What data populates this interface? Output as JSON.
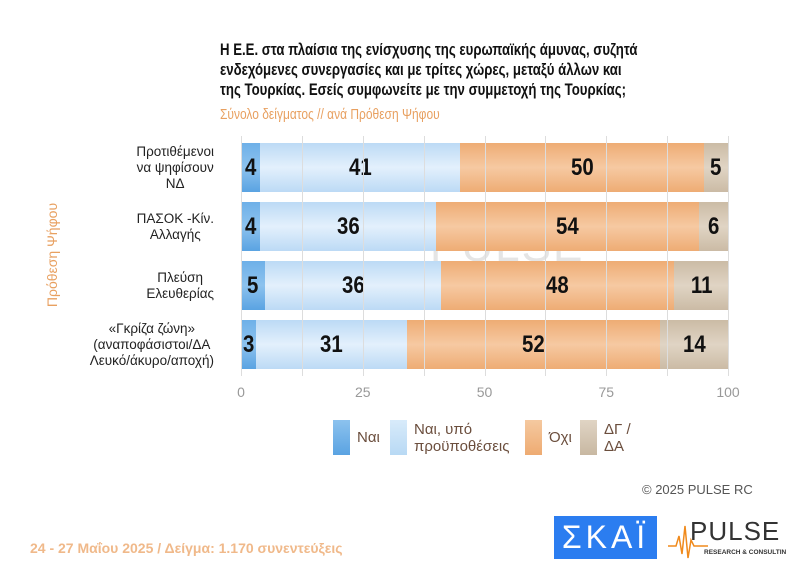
{
  "chart_data": {
    "type": "bar",
    "orientation": "horizontal-stacked",
    "title": "Η Ε.Ε. στα πλαίσια της ενίσχυσης της ευρωπαϊκής άμυνας, συζητά ενδεχόμενες συνεργασίες και με τρίτες χώρες, μεταξύ άλλων και της Τουρκίας. Εσείς συμφωνείτε με την συμμετοχή της Τουρκίας;",
    "title_lines": [
      "Η Ε.Ε. στα πλαίσια της ενίσχυσης της ευρωπαϊκής άμυνας, συζητά",
      "ενδεχόμενες συνεργασίες και με τρίτες χώρες, μεταξύ άλλων και",
      "της Τουρκίας. Εσείς συμφωνείτε με την συμμετοχή της Τουρκίας;"
    ],
    "subtitle": "Σύνολο δείγματος // ανά Πρόθεση Ψήφου",
    "ylabel": "Πρόθεση Ψήφου",
    "xlim": [
      0,
      100
    ],
    "xticks": [
      "0",
      "25",
      "50",
      "75",
      "100"
    ],
    "categories": [
      [
        "Προτιθέμενοι",
        "να ψηφίσουν",
        "ΝΔ"
      ],
      [
        "ΠΑΣΟΚ -Κίν.",
        "Αλλαγής"
      ],
      [
        "Πλεύση",
        "Ελευθερίας"
      ],
      [
        "«Γκρίζα ζώνη»",
        "(αναποφάσιστοι/ΔΑ",
        "Λευκό/άκυρο/αποχή)"
      ]
    ],
    "series": [
      {
        "name": "Ναι",
        "legend_lines": [
          "Ναι"
        ],
        "color": "#6aaee6",
        "values": [
          4,
          4,
          5,
          3
        ]
      },
      {
        "name": "Ναι, υπό προϋποθέσεις",
        "legend_lines": [
          "Ναι, υπό",
          "προϋποθέσεις"
        ],
        "color": "#c5e0f7",
        "values": [
          41,
          36,
          36,
          31
        ]
      },
      {
        "name": "Όχι",
        "legend_lines": [
          "Όχι"
        ],
        "color": "#f1b888",
        "values": [
          50,
          54,
          48,
          52
        ]
      },
      {
        "name": "ΔΓ / ΔΑ",
        "legend_lines": [
          "ΔΓ /",
          "ΔΑ"
        ],
        "color": "#d5c6b3",
        "values": [
          5,
          6,
          11,
          14
        ]
      }
    ],
    "legend_position": "bottom"
  },
  "copyright": "©  2025  PULSE RC",
  "footer": "24 - 27 Μαΐου 2025  /  Δείγμα:  1.170 συνεντεύξεις",
  "logos": {
    "skai": "ΣΚΑΪ",
    "pulse": "PULSE",
    "pulse_sub": "RESEARCH & CONSULTING",
    "watermark": "PULSE"
  }
}
